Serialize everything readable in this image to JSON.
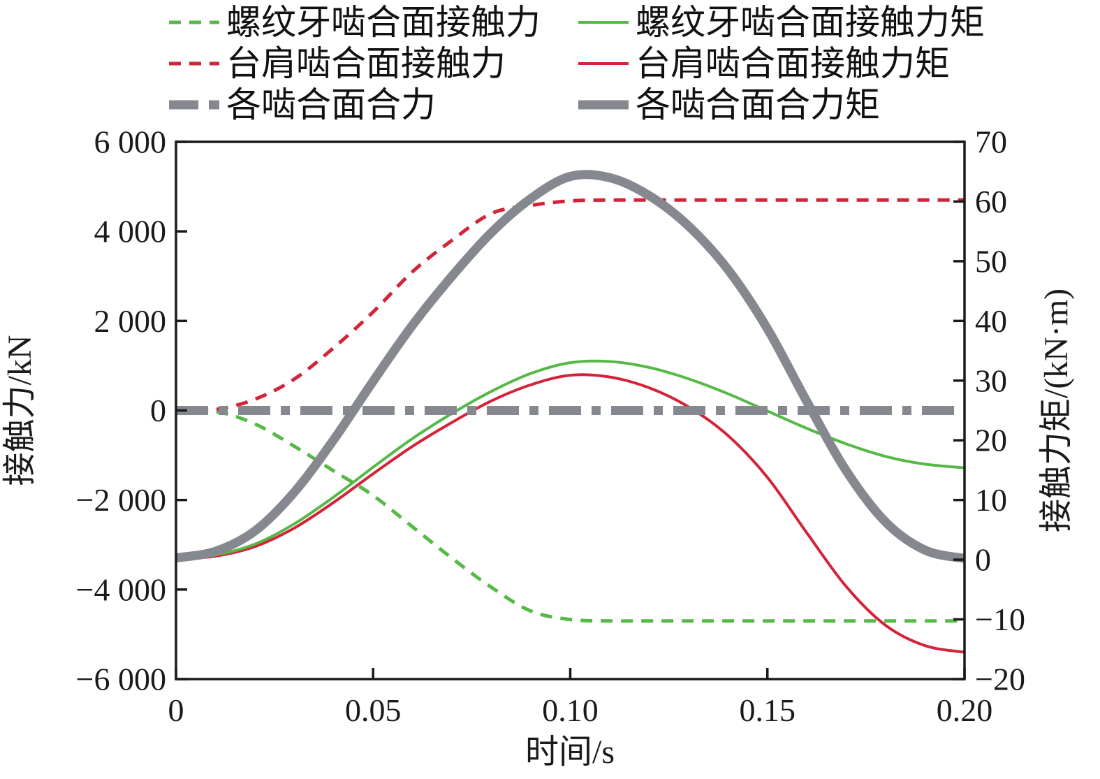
{
  "legend": {
    "columns": [
      {
        "items": [
          {
            "label": "螺纹牙啮合面接触力",
            "color": "#56b847",
            "style": "dashed",
            "width": 5
          },
          {
            "label": "台肩啮合面接触力",
            "color": "#d22339",
            "style": "dashed",
            "width": 5
          },
          {
            "label": "各啮合面合力",
            "color": "#85888f",
            "style": "dashdot",
            "width": 13
          }
        ]
      },
      {
        "items": [
          {
            "label": "螺纹牙啮合面接触力矩",
            "color": "#56b847",
            "style": "solid",
            "width": 4
          },
          {
            "label": "台肩啮合面接触力矩",
            "color": "#d22339",
            "style": "solid",
            "width": 4
          },
          {
            "label": "各啮合面合力矩",
            "color": "#85888f",
            "style": "solid",
            "width": 13
          }
        ]
      }
    ]
  },
  "chart_data": {
    "type": "line",
    "grid": false,
    "legend_position": "top",
    "x_axis": {
      "label": "时间/s",
      "min": 0,
      "max": 0.2,
      "ticks": [
        0,
        0.05,
        0.1,
        0.15,
        0.2
      ],
      "tick_labels": [
        "0",
        "0.05",
        "0.10",
        "0.15",
        "0.20"
      ]
    },
    "y_left": {
      "label": "接触力/kN",
      "min": -6000,
      "max": 6000,
      "ticks": [
        6000,
        4000,
        2000,
        0,
        -2000,
        -4000,
        -6000
      ],
      "tick_labels": [
        "6 000",
        "4 000",
        "2 000",
        "0",
        "−2 000",
        "−4 000",
        "−6 000"
      ]
    },
    "y_right": {
      "label": "接触力矩/(kN·m)",
      "min": -20,
      "max": 70,
      "ticks": [
        70,
        60,
        50,
        40,
        30,
        20,
        10,
        0,
        -10,
        -20
      ],
      "tick_labels": [
        "70",
        "60",
        "50",
        "40",
        "30",
        "20",
        "10",
        "0",
        "−10",
        "−20"
      ]
    },
    "x": [
      0,
      0.01,
      0.02,
      0.03,
      0.04,
      0.05,
      0.06,
      0.07,
      0.08,
      0.09,
      0.1,
      0.11,
      0.12,
      0.13,
      0.14,
      0.15,
      0.16,
      0.17,
      0.18,
      0.19,
      0.2
    ],
    "series": [
      {
        "id": "thread_force",
        "name": "螺纹牙啮合面接触力",
        "axis": "left",
        "color": "#56b847",
        "style": "dashed",
        "width": 5,
        "values": [
          0,
          -20,
          -300,
          -800,
          -1350,
          -1900,
          -2600,
          -3300,
          -3950,
          -4480,
          -4670,
          -4700,
          -4700,
          -4700,
          -4700,
          -4700,
          -4700,
          -4700,
          -4700,
          -4700,
          -4700
        ]
      },
      {
        "id": "shoulder_force",
        "name": "台肩啮合面接触力",
        "axis": "left",
        "color": "#d22339",
        "style": "dashed",
        "width": 5,
        "values": [
          0,
          20,
          250,
          700,
          1400,
          2200,
          3100,
          3800,
          4400,
          4580,
          4680,
          4700,
          4700,
          4700,
          4700,
          4700,
          4700,
          4700,
          4700,
          4700,
          4700
        ]
      },
      {
        "id": "shoulder_torque",
        "name": "台肩啮合面接触力矩",
        "axis": "right",
        "color": "#d22339",
        "style": "solid",
        "width": 4,
        "values": [
          0.1,
          0.6,
          2.2,
          5.3,
          9.6,
          14.4,
          19.0,
          23.0,
          26.6,
          29.3,
          30.9,
          30.6,
          28.8,
          25.6,
          20.8,
          13.8,
          4.5,
          -4.5,
          -11.0,
          -14.4,
          -15.5
        ]
      },
      {
        "id": "thread_torque",
        "name": "螺纹牙啮合面接触力矩",
        "axis": "right",
        "color": "#56b847",
        "style": "solid",
        "width": 4,
        "values": [
          0.2,
          0.8,
          2.6,
          6.0,
          10.5,
          15.5,
          20.3,
          24.5,
          28.2,
          31.2,
          33.0,
          33.2,
          32.2,
          30.3,
          27.8,
          24.9,
          22.0,
          19.4,
          17.3,
          16.0,
          15.4
        ]
      },
      {
        "id": "net_torque",
        "name": "各啮合面合力矩",
        "axis": "right",
        "color": "#85888f",
        "style": "solid",
        "width": 13,
        "values": [
          0.3,
          1.4,
          4.8,
          11.3,
          20.1,
          29.9,
          39.3,
          47.5,
          54.8,
          60.5,
          64.2,
          64.0,
          61.0,
          55.9,
          48.6,
          38.7,
          26.5,
          14.9,
          6.3,
          1.6,
          0.2
        ]
      },
      {
        "id": "net_force",
        "name": "各啮合面合力",
        "axis": "left",
        "color": "#85888f",
        "style": "dashdot",
        "width": 13,
        "values": [
          0,
          0,
          0,
          0,
          0,
          0,
          0,
          0,
          0,
          0,
          0,
          0,
          0,
          0,
          0,
          0,
          0,
          0,
          0,
          0,
          0
        ]
      }
    ]
  }
}
